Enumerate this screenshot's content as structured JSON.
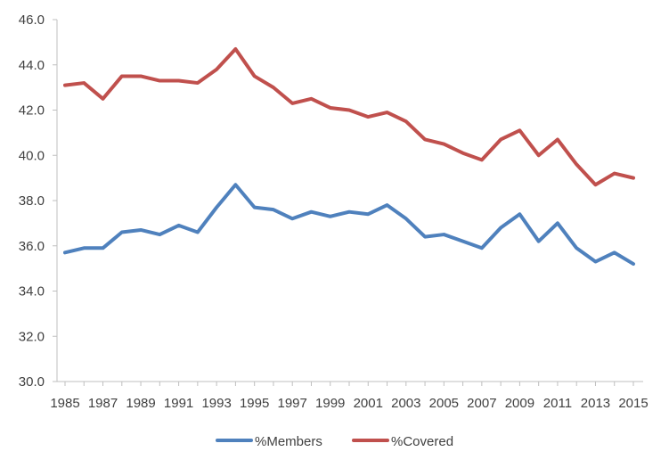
{
  "chart_data": {
    "type": "line",
    "title": "",
    "xlabel": "",
    "ylabel": "",
    "x": [
      1985,
      1986,
      1987,
      1988,
      1989,
      1990,
      1991,
      1992,
      1993,
      1994,
      1995,
      1996,
      1997,
      1998,
      1999,
      2000,
      2001,
      2002,
      2003,
      2004,
      2005,
      2006,
      2007,
      2008,
      2009,
      2010,
      2011,
      2012,
      2013,
      2014,
      2015
    ],
    "x_tick_labels": [
      "1985",
      "1987",
      "1989",
      "1991",
      "1993",
      "1995",
      "1997",
      "1999",
      "2001",
      "2003",
      "2005",
      "2007",
      "2009",
      "2011",
      "2013",
      "2015"
    ],
    "ylim": [
      30.0,
      46.0
    ],
    "y_tick_labels": [
      "30.0",
      "32.0",
      "34.0",
      "36.0",
      "38.0",
      "40.0",
      "42.0",
      "44.0",
      "46.0"
    ],
    "grid": false,
    "legend_position": "bottom",
    "series": [
      {
        "name": "%Members",
        "color": "#4f81bd",
        "values": [
          35.7,
          35.9,
          35.9,
          36.6,
          36.7,
          36.5,
          36.9,
          36.6,
          37.7,
          38.7,
          37.7,
          37.6,
          37.2,
          37.5,
          37.3,
          37.5,
          37.4,
          37.8,
          37.2,
          36.4,
          36.5,
          36.2,
          35.9,
          36.8,
          37.4,
          36.2,
          37.0,
          35.9,
          35.3,
          35.7,
          35.2
        ]
      },
      {
        "name": "%Covered",
        "color": "#c0504d",
        "values": [
          43.1,
          43.2,
          42.5,
          43.5,
          43.5,
          43.3,
          43.3,
          43.2,
          43.8,
          44.7,
          43.5,
          43.0,
          42.3,
          42.5,
          42.1,
          42.0,
          41.7,
          41.9,
          41.5,
          40.7,
          40.5,
          40.1,
          39.8,
          40.7,
          41.1,
          40.0,
          40.7,
          39.6,
          38.7,
          39.2,
          39.0
        ]
      }
    ]
  }
}
